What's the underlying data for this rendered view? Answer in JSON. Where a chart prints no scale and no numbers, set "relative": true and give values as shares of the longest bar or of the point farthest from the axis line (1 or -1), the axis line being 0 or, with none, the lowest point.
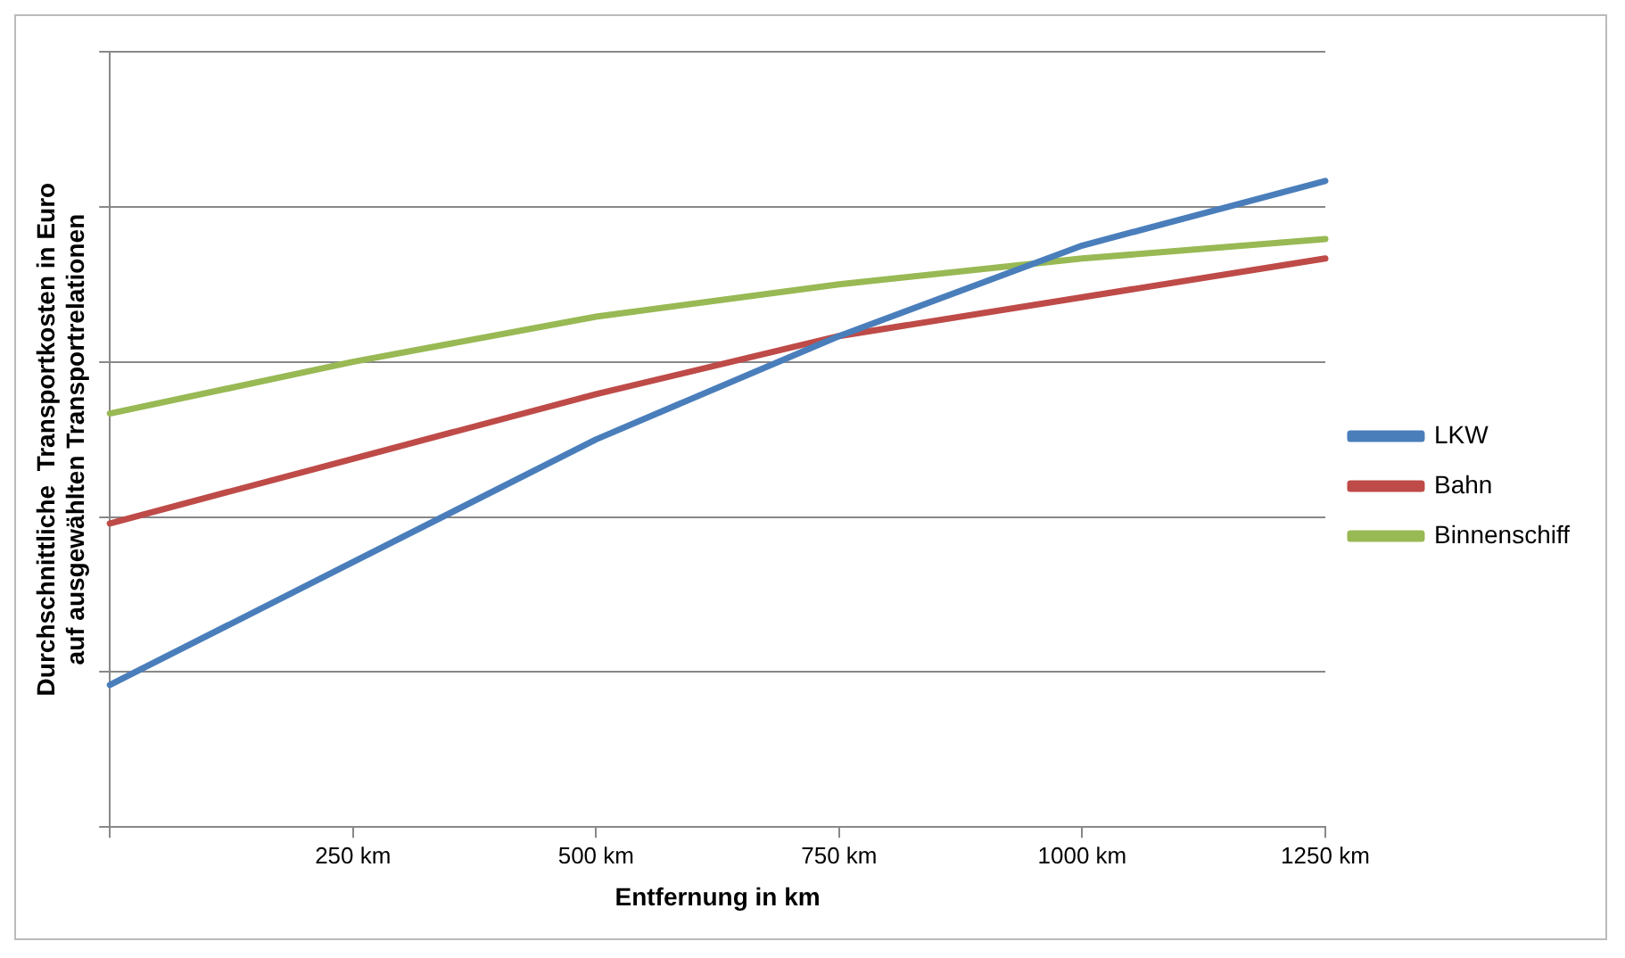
{
  "chart_data": {
    "type": "line",
    "xlabel": "Entfernung in km",
    "ylabel": "Durchschnittliche  Transportkosten in Euro\nauf ausgewählten Transportrelationen",
    "relative": true,
    "x": [
      0,
      250,
      500,
      750,
      1000,
      1250
    ],
    "xlim": [
      0,
      1250
    ],
    "xticks": [
      {
        "value": 0,
        "label": null
      },
      {
        "value": 250,
        "label": "250 km"
      },
      {
        "value": 500,
        "label": "500 km"
      },
      {
        "value": 750,
        "label": "750 km"
      },
      {
        "value": 1000,
        "label": "1000 km"
      },
      {
        "value": 1250,
        "label": "1250 km"
      }
    ],
    "series": [
      {
        "name": "LKW",
        "color": "#4a7ebb",
        "values": [
          0.22,
          0.41,
          0.6,
          0.76,
          0.9,
          1
        ]
      },
      {
        "name": "Bahn",
        "color": "#be4b48",
        "values": [
          0.47,
          0.57,
          0.67,
          0.76,
          0.82,
          0.88
        ]
      },
      {
        "name": "Binnenschiff",
        "color": "#98b954",
        "values": [
          0.64,
          0.72,
          0.79,
          0.84,
          0.88,
          0.91
        ]
      }
    ],
    "grid": "y",
    "legend": "right",
    "marker": "none",
    "line_style": "solid"
  }
}
